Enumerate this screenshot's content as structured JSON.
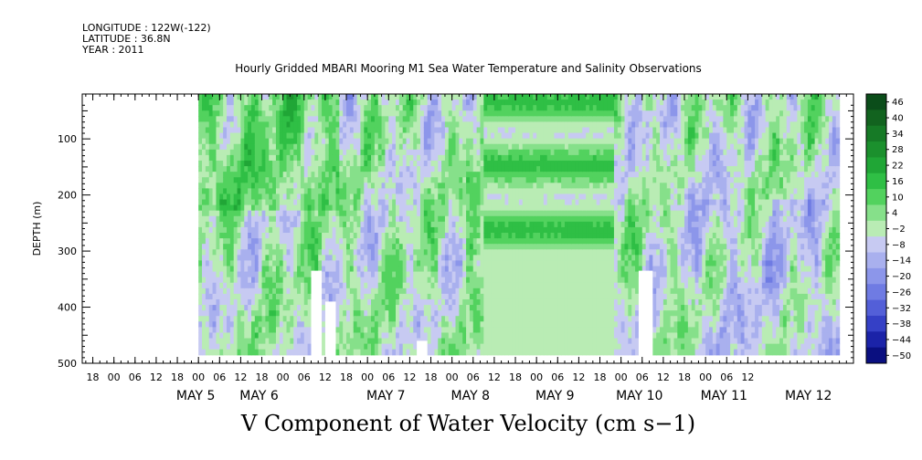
{
  "header": {
    "longitude": "LONGITUDE : 122W(-122)",
    "latitude": "LATITUDE : 36.8N",
    "year": "YEAR : 2011"
  },
  "chart_data": {
    "type": "heatmap",
    "title": "Hourly Gridded MBARI Mooring M1 Sea Water Temperature and Salinity Observations",
    "variable_label": "V Component of Water Velocity (cm s−1)",
    "ylabel": "DEPTH (m)",
    "ylim": [
      500,
      20
    ],
    "y_ticks": [
      100,
      200,
      300,
      400,
      500
    ],
    "data_depth_range": [
      20,
      485
    ],
    "x_hour_ticks": [
      "18",
      "00",
      "06",
      "12",
      "18",
      "00",
      "06",
      "12",
      "18",
      "00",
      "06",
      "12",
      "18",
      "00",
      "06",
      "12",
      "18",
      "00",
      "06",
      "12",
      "18",
      "00",
      "06",
      "12",
      "18",
      "00",
      "06",
      "12",
      "18",
      "00",
      "06",
      "12"
    ],
    "x_day_labels": [
      "MAY  5",
      "MAY  6",
      "MAY  7",
      "MAY  8",
      "MAY  9",
      "MAY 10",
      "MAY 11",
      "MAY 12"
    ],
    "day_label_hours": [
      0,
      18,
      54,
      78,
      102,
      126,
      150,
      174
    ],
    "x_range_hours": [
      -33,
      186
    ],
    "data_x_range_hours": [
      0,
      182
    ],
    "colorbar": {
      "levels": [
        46,
        40,
        34,
        28,
        22,
        16,
        10,
        4,
        -2,
        -8,
        -14,
        -20,
        -26,
        -32,
        -38,
        -44,
        -50
      ],
      "labels": [
        "46",
        "40",
        "34",
        "28",
        "22",
        "16",
        "10",
        "4",
        "−2",
        "−8",
        "−14",
        "−20",
        "−26",
        "−32",
        "−38",
        "−44",
        "−50"
      ],
      "colors": [
        "#0b4d1a",
        "#12631f",
        "#167a26",
        "#1b902d",
        "#20a636",
        "#2fbf45",
        "#52d25e",
        "#86e08a",
        "#b9ecb4",
        "#c7caf2",
        "#a9b0ee",
        "#8c96ea",
        "#6f7be3",
        "#535fd8",
        "#3540c6",
        "#1b23a8",
        "#0a0f80"
      ]
    },
    "nodata_gaps": [
      {
        "hours": [
          32,
          35
        ],
        "depth_top": 335
      },
      {
        "hours": [
          36,
          39
        ],
        "depth_top": 390
      },
      {
        "hours": [
          62,
          65
        ],
        "depth_top": 460
      },
      {
        "hours": [
          125,
          129
        ],
        "depth_top": 335
      }
    ]
  }
}
